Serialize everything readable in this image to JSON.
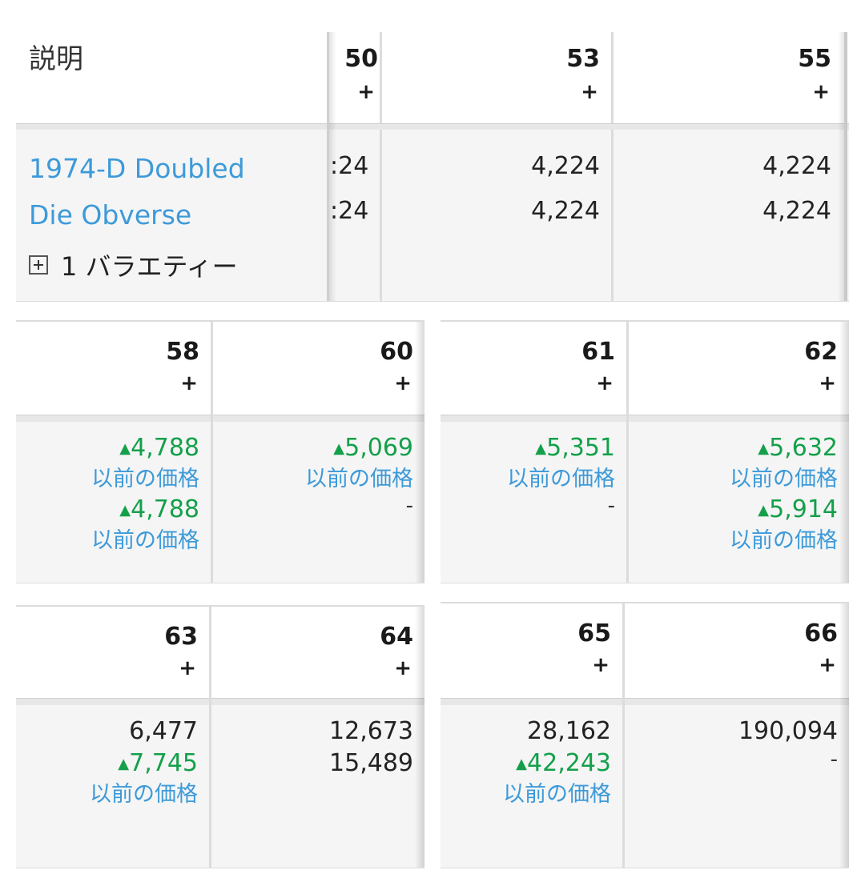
{
  "top_table": {
    "description_header": "説明",
    "coin_name_line1": "1974-D Doubled",
    "coin_name_line2": "Die Obverse",
    "expand_icon": "plus-square-icon",
    "varieties_label": "1 バラエティー",
    "columns": [
      {
        "grade": "50",
        "plus": "+",
        "values": [
          ":24",
          ":24"
        ]
      },
      {
        "grade": "53",
        "plus": "+",
        "values": [
          "4,224",
          "4,224"
        ]
      },
      {
        "grade": "55",
        "plus": "+",
        "values": [
          "4,224",
          "4,224"
        ]
      }
    ]
  },
  "price_label": "以前の価格",
  "up_arrow": "▲",
  "panels": [
    {
      "columns": [
        {
          "grade": "58",
          "plus": "+",
          "entries": [
            {
              "value": "4,788",
              "up": true,
              "prev": "以前の価格"
            },
            {
              "value": "4,788",
              "up": true,
              "prev": "以前の価格"
            }
          ]
        },
        {
          "grade": "60",
          "plus": "+",
          "entries": [
            {
              "value": "5,069",
              "up": true,
              "prev": "以前の価格"
            },
            {
              "dash": "-"
            }
          ]
        }
      ]
    },
    {
      "columns": [
        {
          "grade": "61",
          "plus": "+",
          "entries": [
            {
              "value": "5,351",
              "up": true,
              "prev": "以前の価格"
            },
            {
              "dash": "-"
            }
          ]
        },
        {
          "grade": "62",
          "plus": "+",
          "entries": [
            {
              "value": "5,632",
              "up": true,
              "prev": "以前の価格"
            },
            {
              "value": "5,914",
              "up": true,
              "prev": "以前の価格"
            }
          ]
        }
      ]
    },
    {
      "columns": [
        {
          "grade": "63",
          "plus": "+",
          "entries": [
            {
              "value": "6,477",
              "up": false
            },
            {
              "value": "7,745",
              "up": true,
              "prev": "以前の価格"
            }
          ]
        },
        {
          "grade": "64",
          "plus": "+",
          "entries": [
            {
              "value": "12,673",
              "up": false
            },
            {
              "value": "15,489",
              "up": false
            }
          ]
        }
      ]
    },
    {
      "columns": [
        {
          "grade": "65",
          "plus": "+",
          "entries": [
            {
              "value": "28,162",
              "up": false
            },
            {
              "value": "42,243",
              "up": true,
              "prev": "以前の価格"
            }
          ]
        },
        {
          "grade": "66",
          "plus": "+",
          "entries": [
            {
              "value": "190,094",
              "up": false
            },
            {
              "dash": "-"
            }
          ]
        }
      ]
    }
  ],
  "colors": {
    "up_green": "#14a04a",
    "link_blue": "#3d9ad9",
    "body_grey": "#f5f5f5",
    "border_grey": "#dcdcdc"
  }
}
